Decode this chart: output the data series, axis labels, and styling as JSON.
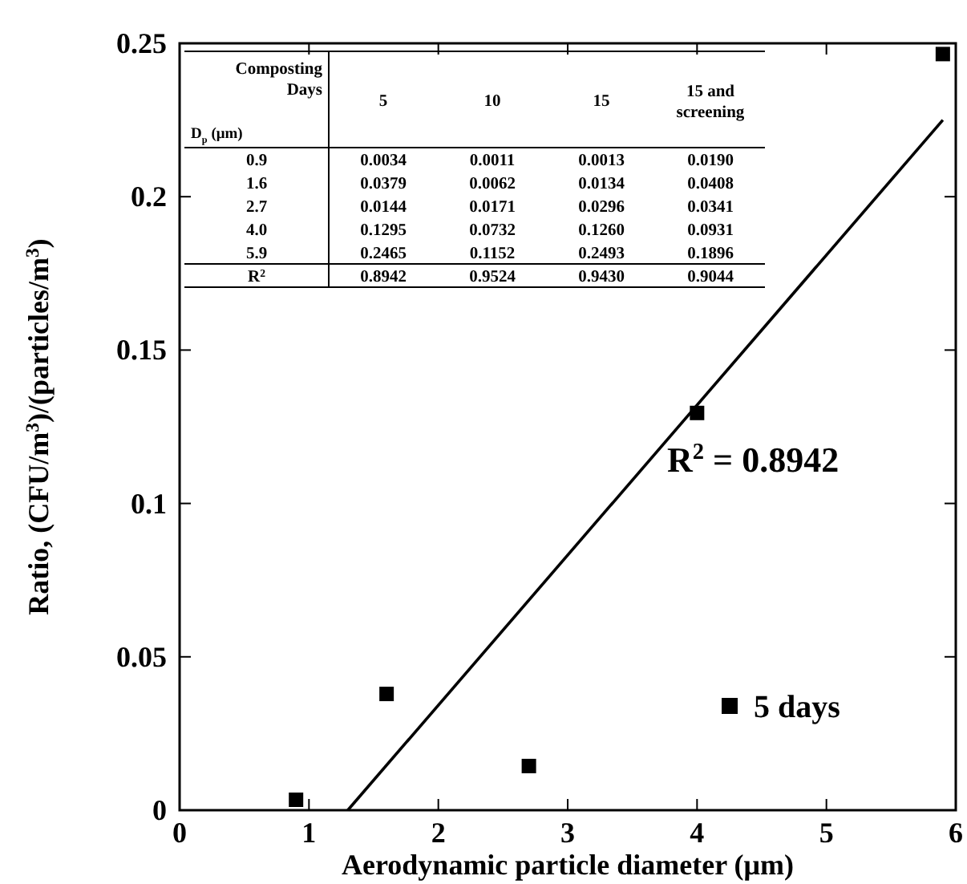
{
  "chart_data": [
    {
      "type": "scatter",
      "xlabel": "Aerodynamic particle diameter (μm)",
      "ylabel": "Ratio, (CFU/m$^{3}$)/(particles/m$^{3}$)",
      "xlim": [
        0,
        6
      ],
      "xticks": [
        0,
        1,
        2,
        3,
        4,
        5,
        6
      ],
      "ylim": [
        0,
        0.25
      ],
      "yticks": [
        0,
        0.05,
        0.1,
        0.15,
        0.2,
        0.25
      ],
      "grid": false,
      "legend": "bottom right",
      "annotations": [
        "R$^{2}$ = 0.8942"
      ],
      "series": [
        {
          "name": "5 days",
          "type": "scatter",
          "marker": "square",
          "color": "#000000",
          "x": [
            0.9,
            1.6,
            2.7,
            4.0,
            5.9
          ],
          "values": [
            0.0034,
            0.0379,
            0.0144,
            0.1295,
            0.2465
          ]
        },
        {
          "type": "line",
          "color": "#000000",
          "line_style": "solid",
          "x": [
            1.3,
            5.9
          ],
          "values": [
            0,
            0.225
          ]
        }
      ]
    },
    {
      "type": "other",
      "xlabel": "Composting Days",
      "ylabel": "D$_{p}$ (μm)",
      "data_labels": true,
      "categories": [
        "5",
        "10",
        "15",
        "15 and screening"
      ],
      "y_categories": [
        "0.9",
        "1.6",
        "2.7",
        "4.0",
        "5.9",
        "R$^{2}$"
      ],
      "cells": [
        [
          "0.0034",
          "0.0011",
          "0.0013",
          "0.0190"
        ],
        [
          "0.0379",
          "0.0062",
          "0.0134",
          "0.0408"
        ],
        [
          "0.0144",
          "0.0171",
          "0.0296",
          "0.0341"
        ],
        [
          "0.1295",
          "0.0732",
          "0.1260",
          "0.0931"
        ],
        [
          "0.2465",
          "0.1152",
          "0.2493",
          "0.1896"
        ],
        [
          "0.8942",
          "0.9524",
          "0.9430",
          "0.9044"
        ]
      ]
    }
  ]
}
